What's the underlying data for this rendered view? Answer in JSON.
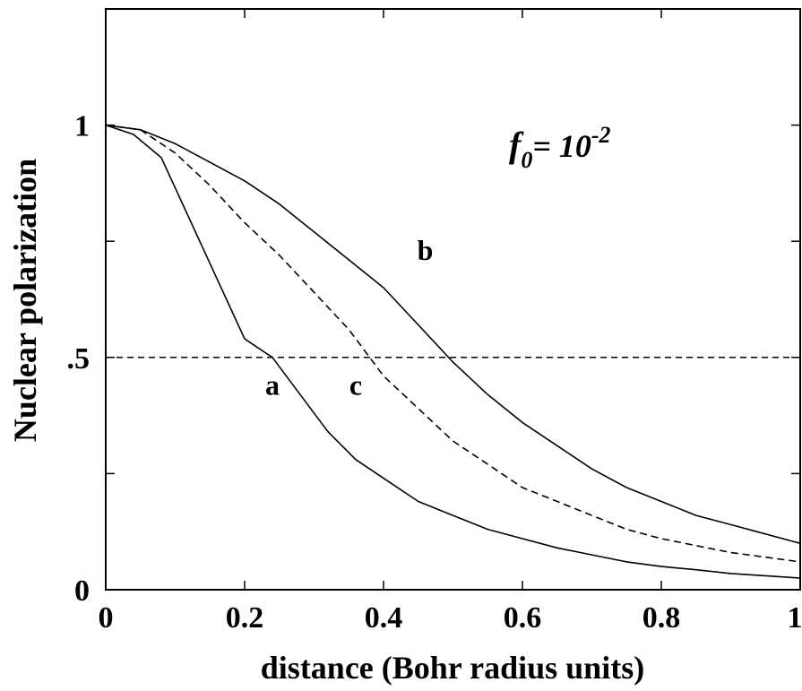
{
  "chart_data": {
    "type": "line",
    "title": "",
    "xlabel": "distance (Bohr radius units)",
    "ylabel": "Nuclear polarization",
    "xlim": [
      0,
      1
    ],
    "ylim": [
      0,
      1.25
    ],
    "x_ticks": [
      0,
      0.2,
      0.4,
      0.6,
      0.8,
      1
    ],
    "x_tick_labels": [
      "0",
      "0.2",
      "0.4",
      "0.6",
      "0.8",
      "1"
    ],
    "y_ticks": [
      0,
      0.25,
      0.5,
      0.75,
      1
    ],
    "y_tick_labels": [
      "0",
      "",
      ".5",
      "",
      "1"
    ],
    "annotation": {
      "base": "f",
      "subscript": "0",
      "equals": "= 10",
      "exponent": "-2"
    },
    "reference_line": {
      "y": 0.5,
      "style": "dashed"
    },
    "series": [
      {
        "name": "a",
        "style": "solid",
        "label_pos": [
          0.24,
          0.42
        ],
        "x": [
          0,
          0.04,
          0.08,
          0.12,
          0.16,
          0.2,
          0.24,
          0.28,
          0.32,
          0.36,
          0.4,
          0.45,
          0.5,
          0.55,
          0.6,
          0.65,
          0.7,
          0.75,
          0.8,
          0.85,
          0.9,
          0.95,
          1.0
        ],
        "y": [
          1.0,
          0.98,
          0.93,
          0.8,
          0.67,
          0.54,
          0.5,
          0.42,
          0.34,
          0.28,
          0.24,
          0.19,
          0.16,
          0.13,
          0.11,
          0.09,
          0.075,
          0.06,
          0.05,
          0.043,
          0.035,
          0.03,
          0.025
        ]
      },
      {
        "name": "b",
        "style": "solid",
        "label_pos": [
          0.46,
          0.71
        ],
        "x": [
          0,
          0.05,
          0.1,
          0.15,
          0.2,
          0.25,
          0.3,
          0.35,
          0.4,
          0.45,
          0.5,
          0.55,
          0.6,
          0.65,
          0.7,
          0.75,
          0.8,
          0.85,
          0.9,
          0.95,
          1.0
        ],
        "y": [
          1.0,
          0.99,
          0.96,
          0.92,
          0.88,
          0.83,
          0.77,
          0.71,
          0.65,
          0.57,
          0.49,
          0.42,
          0.36,
          0.31,
          0.26,
          0.22,
          0.19,
          0.16,
          0.14,
          0.12,
          0.1
        ]
      },
      {
        "name": "c",
        "style": "dashed",
        "label_pos": [
          0.36,
          0.42
        ],
        "x": [
          0,
          0.05,
          0.1,
          0.15,
          0.2,
          0.25,
          0.3,
          0.35,
          0.4,
          0.45,
          0.5,
          0.55,
          0.6,
          0.65,
          0.7,
          0.75,
          0.8,
          0.85,
          0.9,
          0.95,
          1.0
        ],
        "y": [
          1.0,
          0.99,
          0.94,
          0.87,
          0.79,
          0.72,
          0.64,
          0.56,
          0.46,
          0.39,
          0.32,
          0.27,
          0.22,
          0.19,
          0.16,
          0.13,
          0.11,
          0.095,
          0.08,
          0.07,
          0.06
        ]
      }
    ]
  }
}
